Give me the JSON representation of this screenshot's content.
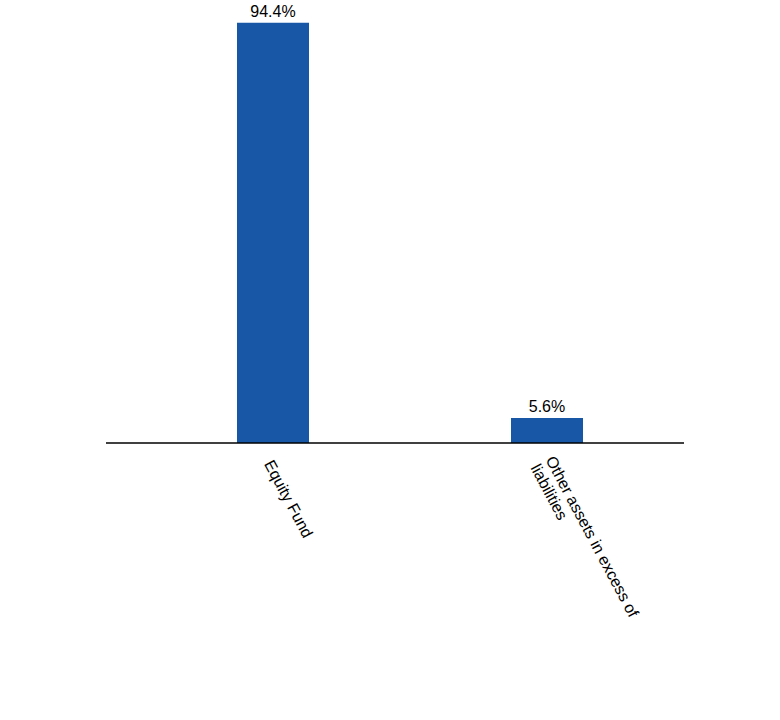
{
  "chart_data": {
    "type": "bar",
    "categories": [
      "Equity Fund",
      "Other assets in excess of liabilities"
    ],
    "values": [
      94.4,
      5.6
    ],
    "value_labels": [
      "94.4%",
      "5.6%"
    ],
    "color": "#1757a6",
    "ylim": [
      0,
      95
    ],
    "data_labels": true,
    "tick_labels": "x",
    "grid": false
  }
}
